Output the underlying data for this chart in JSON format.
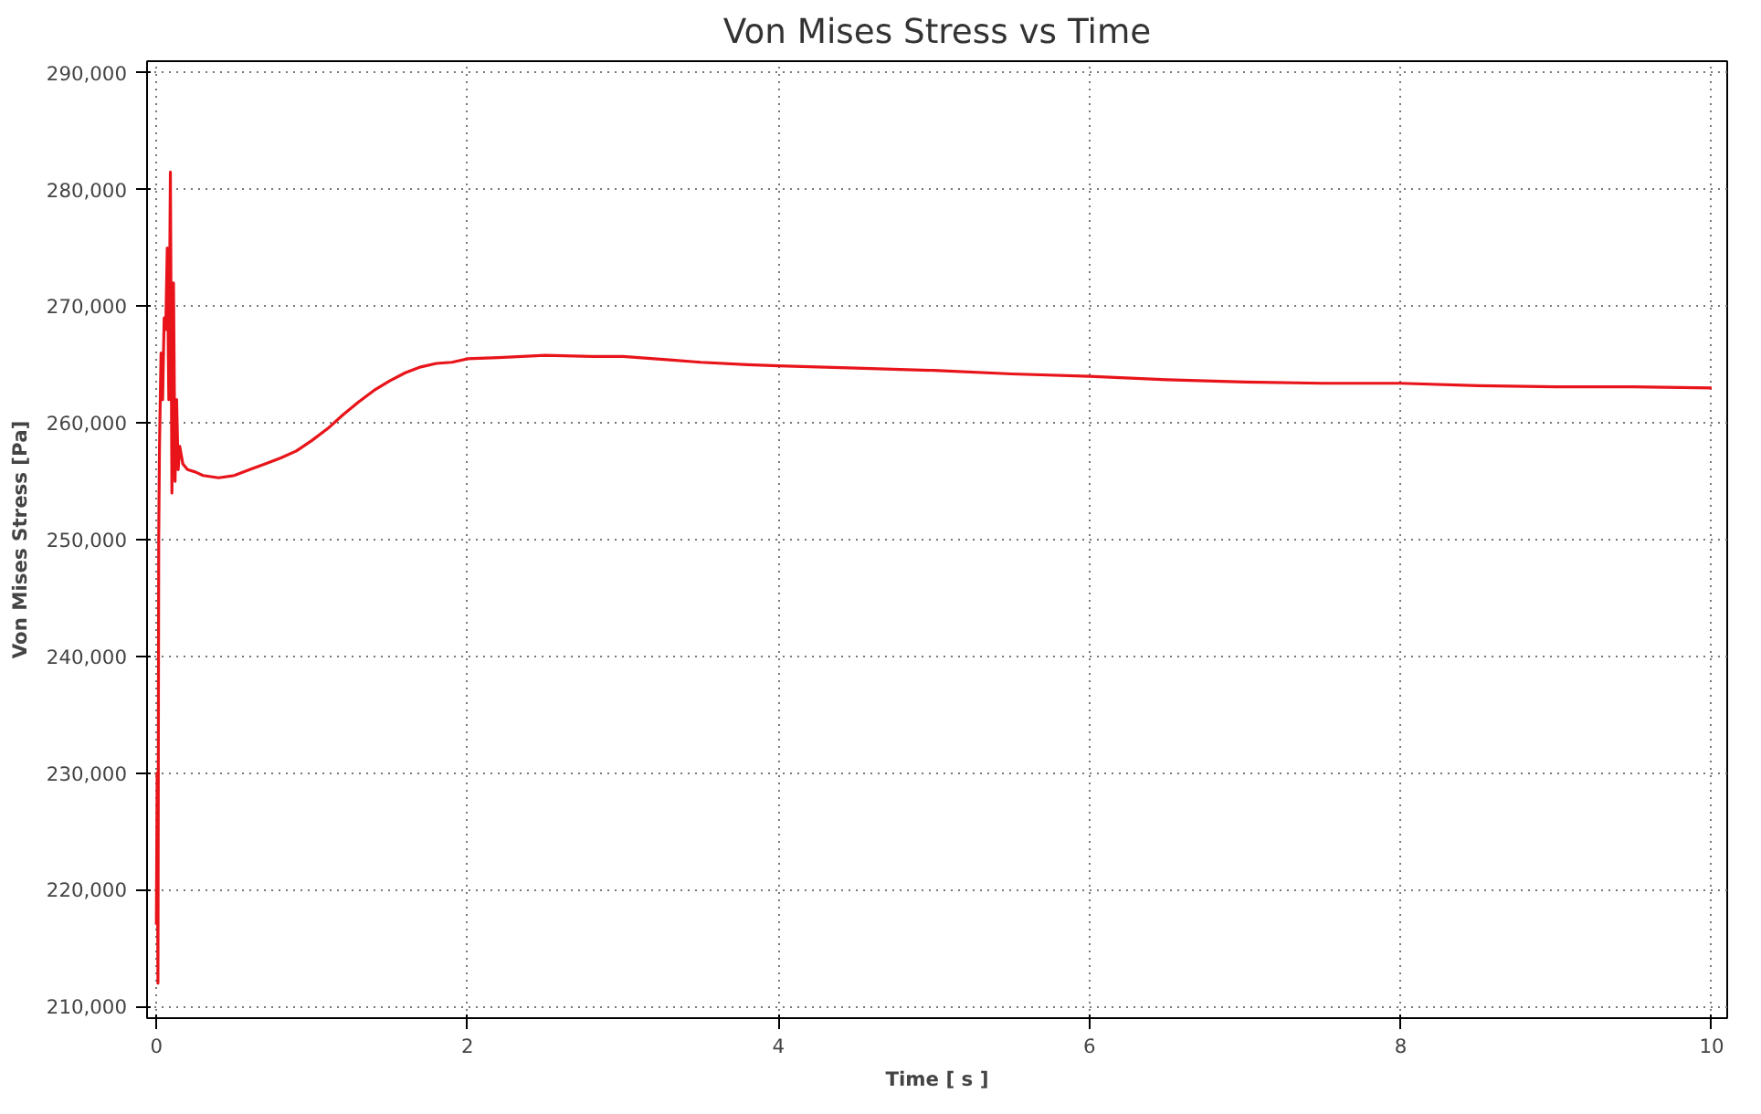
{
  "chart_data": {
    "type": "line",
    "title": "Von Mises Stress vs Time",
    "xlabel": "Time [ s ]",
    "ylabel": "Von Mises Stress [Pa]",
    "x": [
      0,
      0.005,
      0.01,
      0.015,
      0.02,
      0.03,
      0.04,
      0.05,
      0.06,
      0.07,
      0.08,
      0.09,
      0.1,
      0.105,
      0.11,
      0.12,
      0.13,
      0.14,
      0.15,
      0.17,
      0.2,
      0.25,
      0.3,
      0.4,
      0.5,
      0.6,
      0.7,
      0.8,
      0.9,
      1.0,
      1.1,
      1.2,
      1.3,
      1.4,
      1.5,
      1.6,
      1.7,
      1.8,
      1.9,
      2.0,
      2.2,
      2.5,
      2.8,
      3.0,
      3.3,
      3.5,
      3.8,
      4.0,
      4.5,
      5.0,
      5.5,
      6.0,
      6.5,
      7.0,
      7.5,
      8.0,
      8.5,
      9.0,
      9.5,
      10.0
    ],
    "series": [
      {
        "color": "#e8141a",
        "values": [
          217000,
          230000,
          212000,
          250000,
          258000,
          266000,
          262000,
          269000,
          268000,
          275000,
          262000,
          281500,
          254000,
          266000,
          272000,
          255000,
          262000,
          256000,
          258000,
          256500,
          256000,
          255800,
          255500,
          255300,
          255500,
          256000,
          256500,
          257000,
          257600,
          258500,
          259500,
          260700,
          261800,
          262800,
          263600,
          264300,
          264800,
          265100,
          265200,
          265500,
          265600,
          265800,
          265700,
          265700,
          265400,
          265200,
          265000,
          264900,
          264700,
          264500,
          264200,
          264000,
          263700,
          263500,
          263400,
          263400,
          263200,
          263100,
          263100,
          263000
        ]
      }
    ],
    "xlim": [
      -0.06,
      10.1
    ],
    "ylim": [
      209000,
      291000
    ],
    "xticks": [
      0,
      2,
      4,
      6,
      8,
      10
    ],
    "yticks": [
      {
        "value": 210000,
        "label": "210,000"
      },
      {
        "value": 220000,
        "label": "220,000"
      },
      {
        "value": 230000,
        "label": "230,000"
      },
      {
        "value": 240000,
        "label": "240,000"
      },
      {
        "value": 250000,
        "label": "250,000"
      },
      {
        "value": 260000,
        "label": "260,000"
      },
      {
        "value": 270000,
        "label": "270,000"
      },
      {
        "value": 280000,
        "label": "280,000"
      },
      {
        "value": 290000,
        "label": "290,000"
      }
    ],
    "grid": true,
    "line_style": "solid"
  }
}
